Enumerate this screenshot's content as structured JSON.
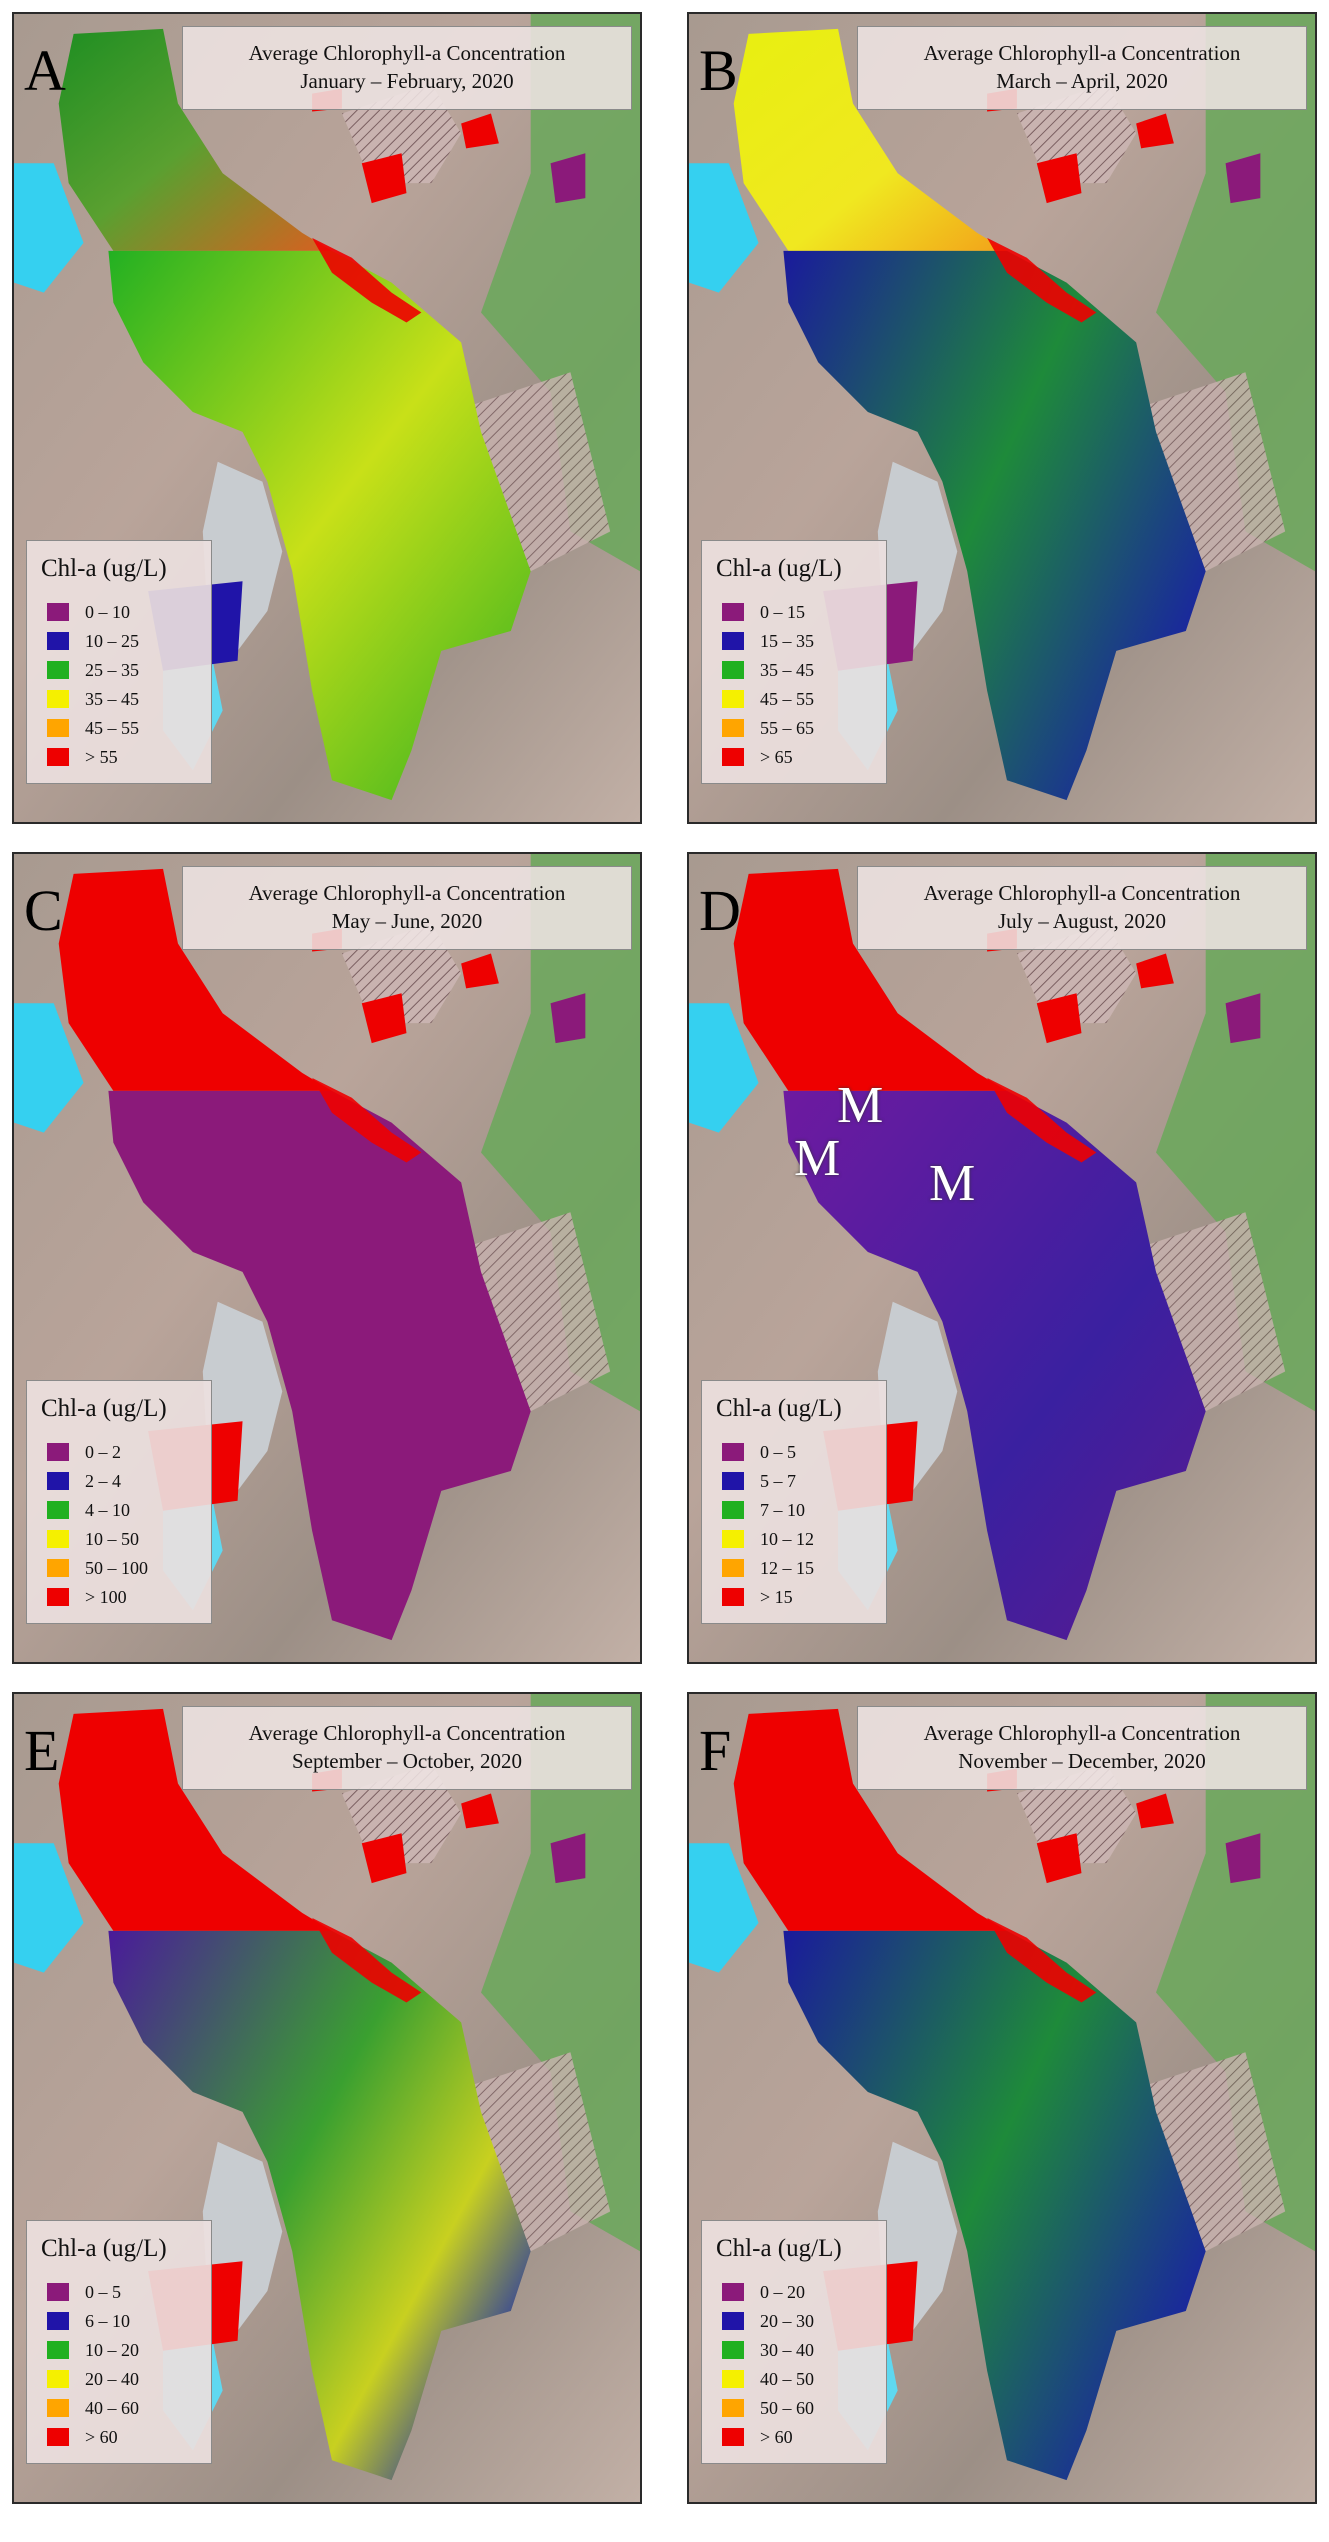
{
  "title_prefix": "Average Chlorophyll-a Concentration",
  "legend_title": "Chl-a (ug/L)",
  "colors": {
    "purple": "#8b1a7a",
    "blue": "#2014a8",
    "green": "#20b020",
    "yellow": "#f5f000",
    "orange": "#ffa500",
    "red": "#ee0000"
  },
  "panels": [
    {
      "letter": "A",
      "period": "January – February, 2020",
      "legend": [
        "0 – 10",
        "10 – 25",
        "25 – 35",
        "35 – 45",
        "45 – 55",
        "> 55"
      ],
      "north_arm": "green-mix",
      "south_arm": "green-yellow",
      "bay": "blue"
    },
    {
      "letter": "B",
      "period": "March – April, 2020",
      "legend": [
        "0 – 15",
        "15 – 35",
        "35 – 45",
        "45 – 55",
        "55 – 65",
        "> 65"
      ],
      "north_arm": "yellow",
      "south_arm": "blue-green",
      "bay": "purple"
    },
    {
      "letter": "C",
      "period": "May – June, 2020",
      "legend": [
        "0 – 2",
        "2 – 4",
        "4 – 10",
        "10 – 50",
        "50 – 100",
        "> 100"
      ],
      "north_arm": "red",
      "south_arm": "purple",
      "bay": "red"
    },
    {
      "letter": "D",
      "period": "July – August, 2020",
      "legend": [
        "0 – 5",
        "5 – 7",
        "7 – 10",
        "10 – 12",
        "12 – 15",
        "> 15"
      ],
      "north_arm": "red",
      "south_arm": "purple-blue",
      "bay": "red",
      "markers": [
        "M",
        "M",
        "M"
      ]
    },
    {
      "letter": "E",
      "period": "September – October, 2020",
      "legend": [
        "0 – 5",
        "6 – 10",
        "10 – 20",
        "20 – 40",
        "40 – 60",
        "> 60"
      ],
      "north_arm": "red",
      "south_arm": "purple-green",
      "bay": "red"
    },
    {
      "letter": "F",
      "period": "November – December, 2020",
      "legend": [
        "0 – 20",
        "20 – 30",
        "30 – 40",
        "40 – 50",
        "50 – 60",
        "> 60"
      ],
      "north_arm": "red",
      "south_arm": "blue-green",
      "bay": "red"
    }
  ]
}
